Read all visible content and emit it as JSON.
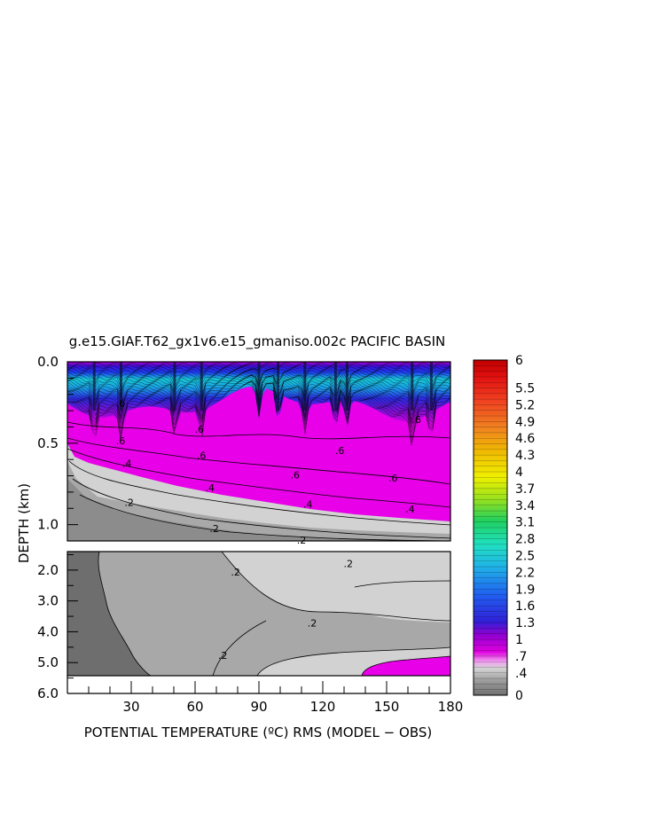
{
  "chart_data": {
    "type": "heatmap",
    "title": "g.e15.GIAF.T62_gx1v6.e15_gmaniso.002c PACIFIC BASIN",
    "xlabel": "POTENTIAL TEMPERATURE (ºC) RMS (MODEL − OBS)",
    "ylabel": "DEPTH (km)",
    "x_ticks": [
      "30",
      "60",
      "90",
      "120",
      "150",
      "180"
    ],
    "x_tick_values": [
      30,
      60,
      90,
      120,
      150,
      180
    ],
    "xlim": [
      0,
      180
    ],
    "upper_panel": {
      "ylim": [
        0.0,
        1.1
      ],
      "y_ticks": [
        "0.0",
        "0.5",
        "1.0"
      ],
      "y_tick_values": [
        0.0,
        0.5,
        1.0
      ]
    },
    "lower_panel": {
      "ylim": [
        1.4,
        6.0
      ],
      "y_ticks": [
        "2.0",
        "3.0",
        "4.0",
        "5.0",
        "6.0"
      ],
      "y_tick_values": [
        2.0,
        3.0,
        4.0,
        5.0,
        6.0
      ]
    },
    "contour_labels": [
      {
        "text": ".6",
        "x": 25,
        "y": 0.27
      },
      {
        "text": ".6",
        "x": 25,
        "y": 0.5
      },
      {
        "text": ".6",
        "x": 62,
        "y": 0.43
      },
      {
        "text": ".6",
        "x": 63,
        "y": 0.59
      },
      {
        "text": ".6",
        "x": 107,
        "y": 0.71
      },
      {
        "text": ".6",
        "x": 128,
        "y": 0.56
      },
      {
        "text": ".6",
        "x": 153,
        "y": 0.73
      },
      {
        "text": ".6",
        "x": 164,
        "y": 0.37
      },
      {
        "text": ".4",
        "x": 28,
        "y": 0.64
      },
      {
        "text": ".4",
        "x": 67,
        "y": 0.79
      },
      {
        "text": ".4",
        "x": 113,
        "y": 0.89
      },
      {
        "text": ".4",
        "x": 161,
        "y": 0.92
      },
      {
        "text": ".2",
        "x": 29,
        "y": 0.88
      },
      {
        "text": ".2",
        "x": 69,
        "y": 1.04
      },
      {
        "text": ".2",
        "x": 110,
        "y": 1.11
      },
      {
        "text": ".2",
        "x": 79,
        "y": 2.15
      },
      {
        "text": ".2",
        "x": 132,
        "y": 1.88
      },
      {
        "text": ".2",
        "x": 115,
        "y": 3.8
      },
      {
        "text": ".2",
        "x": 73,
        "y": 4.85
      }
    ],
    "colorbar": {
      "labels": [
        "6",
        "5.5",
        "5.2",
        "4.9",
        "4.6",
        "4.3",
        "4",
        "3.7",
        "3.4",
        "3.1",
        "2.8",
        "2.5",
        "2.2",
        "1.9",
        "1.6",
        "1.3",
        "1",
        ".7",
        ".4",
        "0"
      ],
      "values": [
        6,
        5.5,
        5.2,
        4.9,
        4.6,
        4.3,
        4,
        3.7,
        3.4,
        3.1,
        2.8,
        2.5,
        2.2,
        1.9,
        1.6,
        1.3,
        1,
        0.7,
        0.4,
        0
      ],
      "range": [
        0,
        6
      ]
    }
  }
}
